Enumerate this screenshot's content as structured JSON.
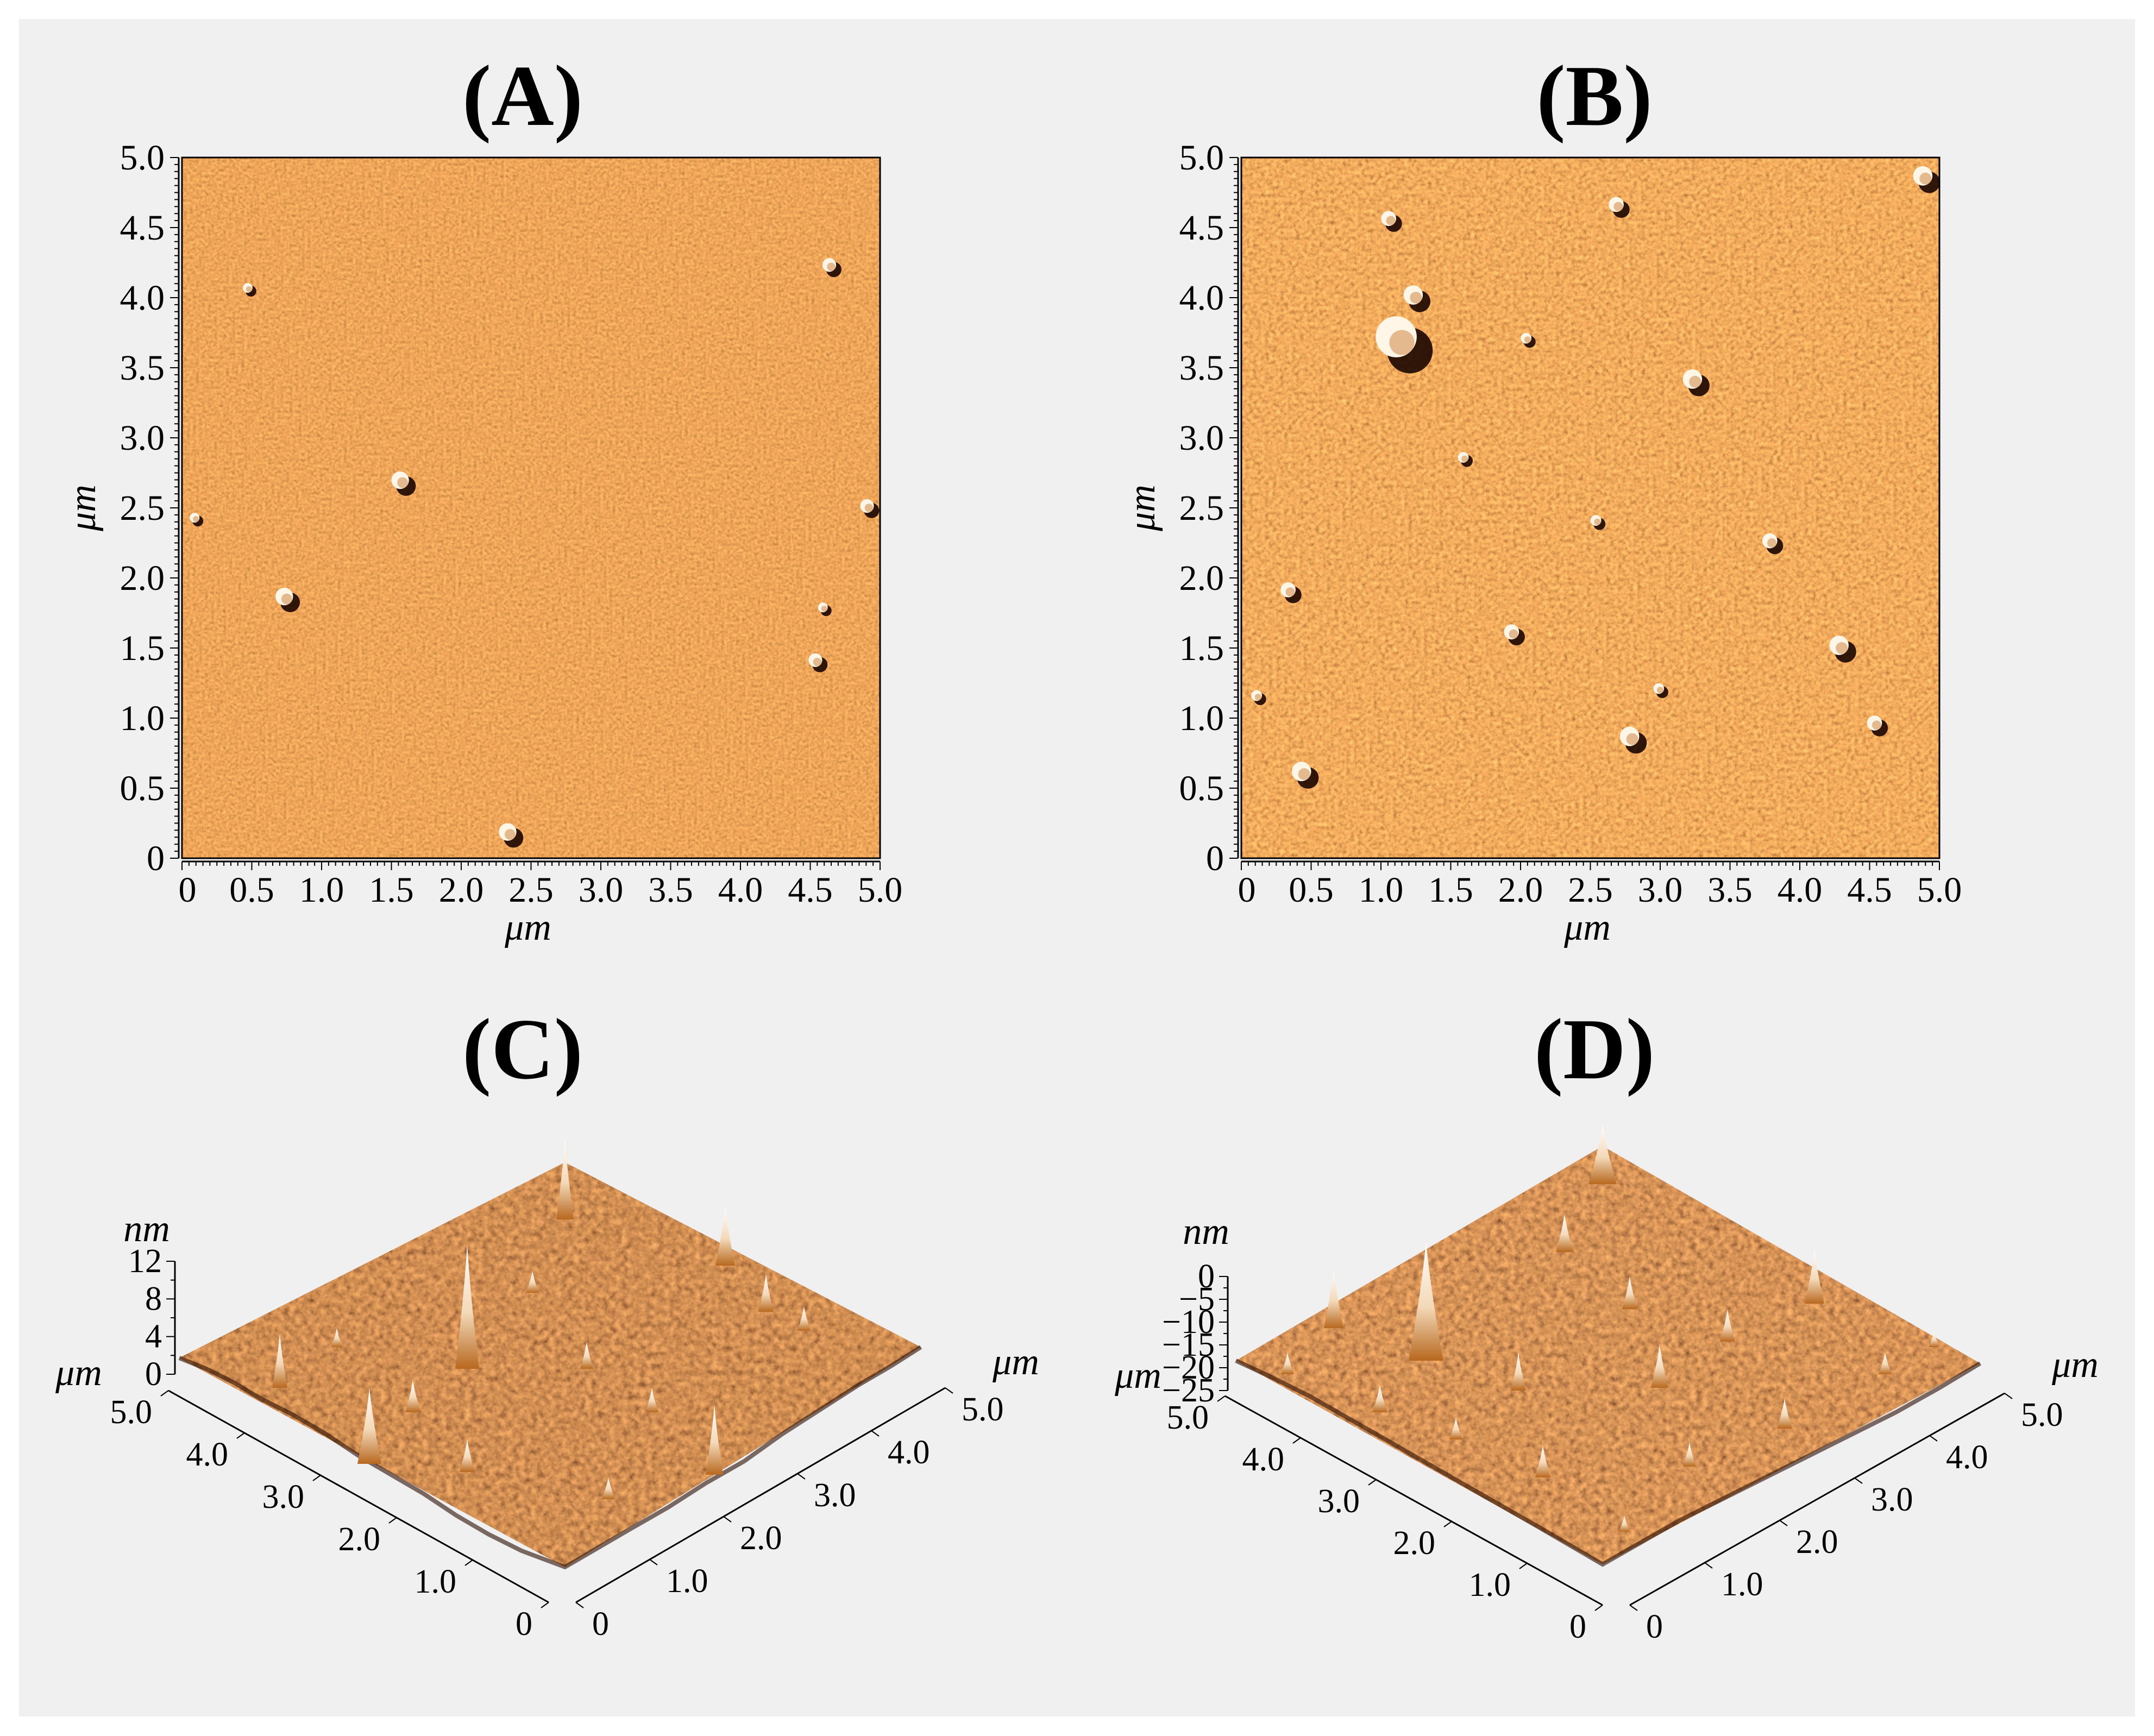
{
  "colors": {
    "background": "#f0f0f0",
    "map_base": "#a65617",
    "surface_dark": "#3c1304",
    "surface_light": "#ffffff",
    "axis": "#000000"
  },
  "panels": {
    "A": {
      "title": "(A)",
      "type": "afm-2d-map",
      "x_label": "μm",
      "y_label": "μm",
      "x_ticks": [
        "0",
        "0.5",
        "1.0",
        "1.5",
        "2.0",
        "2.5",
        "3.0",
        "3.5",
        "4.0",
        "4.5",
        "5.0"
      ],
      "y_ticks": [
        "0",
        "0.5",
        "1.0",
        "1.5",
        "2.0",
        "2.5",
        "3.0",
        "3.5",
        "4.0",
        "4.5",
        "5.0"
      ],
      "features_um": [
        [
          0.48,
          4.06
        ],
        [
          4.65,
          4.22
        ],
        [
          1.58,
          2.68
        ],
        [
          0.1,
          2.42
        ],
        [
          4.92,
          2.5
        ],
        [
          0.75,
          1.85
        ],
        [
          4.6,
          1.78
        ],
        [
          4.55,
          1.4
        ],
        [
          2.35,
          0.17
        ]
      ]
    },
    "B": {
      "title": "(B)",
      "type": "afm-2d-map",
      "x_label": "μm",
      "y_label": "μm",
      "x_ticks": [
        "0",
        "0.5",
        "1.0",
        "1.5",
        "2.0",
        "2.5",
        "3.0",
        "3.5",
        "4.0",
        "4.5",
        "5.0"
      ],
      "y_ticks": [
        "0",
        "0.5",
        "1.0",
        "1.5",
        "2.0",
        "2.5",
        "3.0",
        "3.5",
        "4.0",
        "4.5",
        "5.0"
      ],
      "features_um": [
        [
          1.15,
          3.68
        ],
        [
          1.07,
          4.55
        ],
        [
          4.9,
          4.85
        ],
        [
          1.6,
          2.85
        ],
        [
          0.35,
          1.9
        ],
        [
          4.3,
          1.5
        ],
        [
          0.12,
          1.15
        ],
        [
          2.7,
          4.65
        ],
        [
          3.25,
          3.4
        ],
        [
          2.55,
          2.4
        ],
        [
          3.8,
          2.25
        ],
        [
          1.25,
          4.0
        ],
        [
          2.05,
          3.7
        ],
        [
          4.55,
          0.95
        ],
        [
          0.45,
          0.6
        ],
        [
          3.0,
          1.2
        ],
        [
          1.95,
          1.6
        ],
        [
          2.8,
          0.85
        ]
      ]
    },
    "C": {
      "title": "(C)",
      "type": "afm-3d-surface",
      "z_unit": "nm",
      "z_ticks": [
        "12",
        "8",
        "4",
        "0"
      ],
      "z_range": [
        0,
        12
      ],
      "left_axis_label": "μm",
      "left_axis_ticks": [
        "5.0",
        "4.0",
        "3.0",
        "2.0",
        "1.0",
        "0"
      ],
      "right_axis_label": "μm",
      "right_axis_ticks": [
        "0",
        "1.0",
        "2.0",
        "3.0",
        "4.0",
        "5.0"
      ]
    },
    "D": {
      "title": "(D)",
      "type": "afm-3d-surface",
      "z_unit": "nm",
      "z_ticks": [
        "0",
        "−5",
        "−10",
        "−15",
        "−20",
        "−25"
      ],
      "z_range": [
        -25,
        0
      ],
      "left_axis_label": "μm",
      "left_axis_ticks": [
        "5.0",
        "4.0",
        "3.0",
        "2.0",
        "1.0",
        "0"
      ],
      "right_axis_label": "μm",
      "right_axis_ticks": [
        "0",
        "1.0",
        "2.0",
        "3.0",
        "4.0",
        "5.0"
      ]
    }
  }
}
